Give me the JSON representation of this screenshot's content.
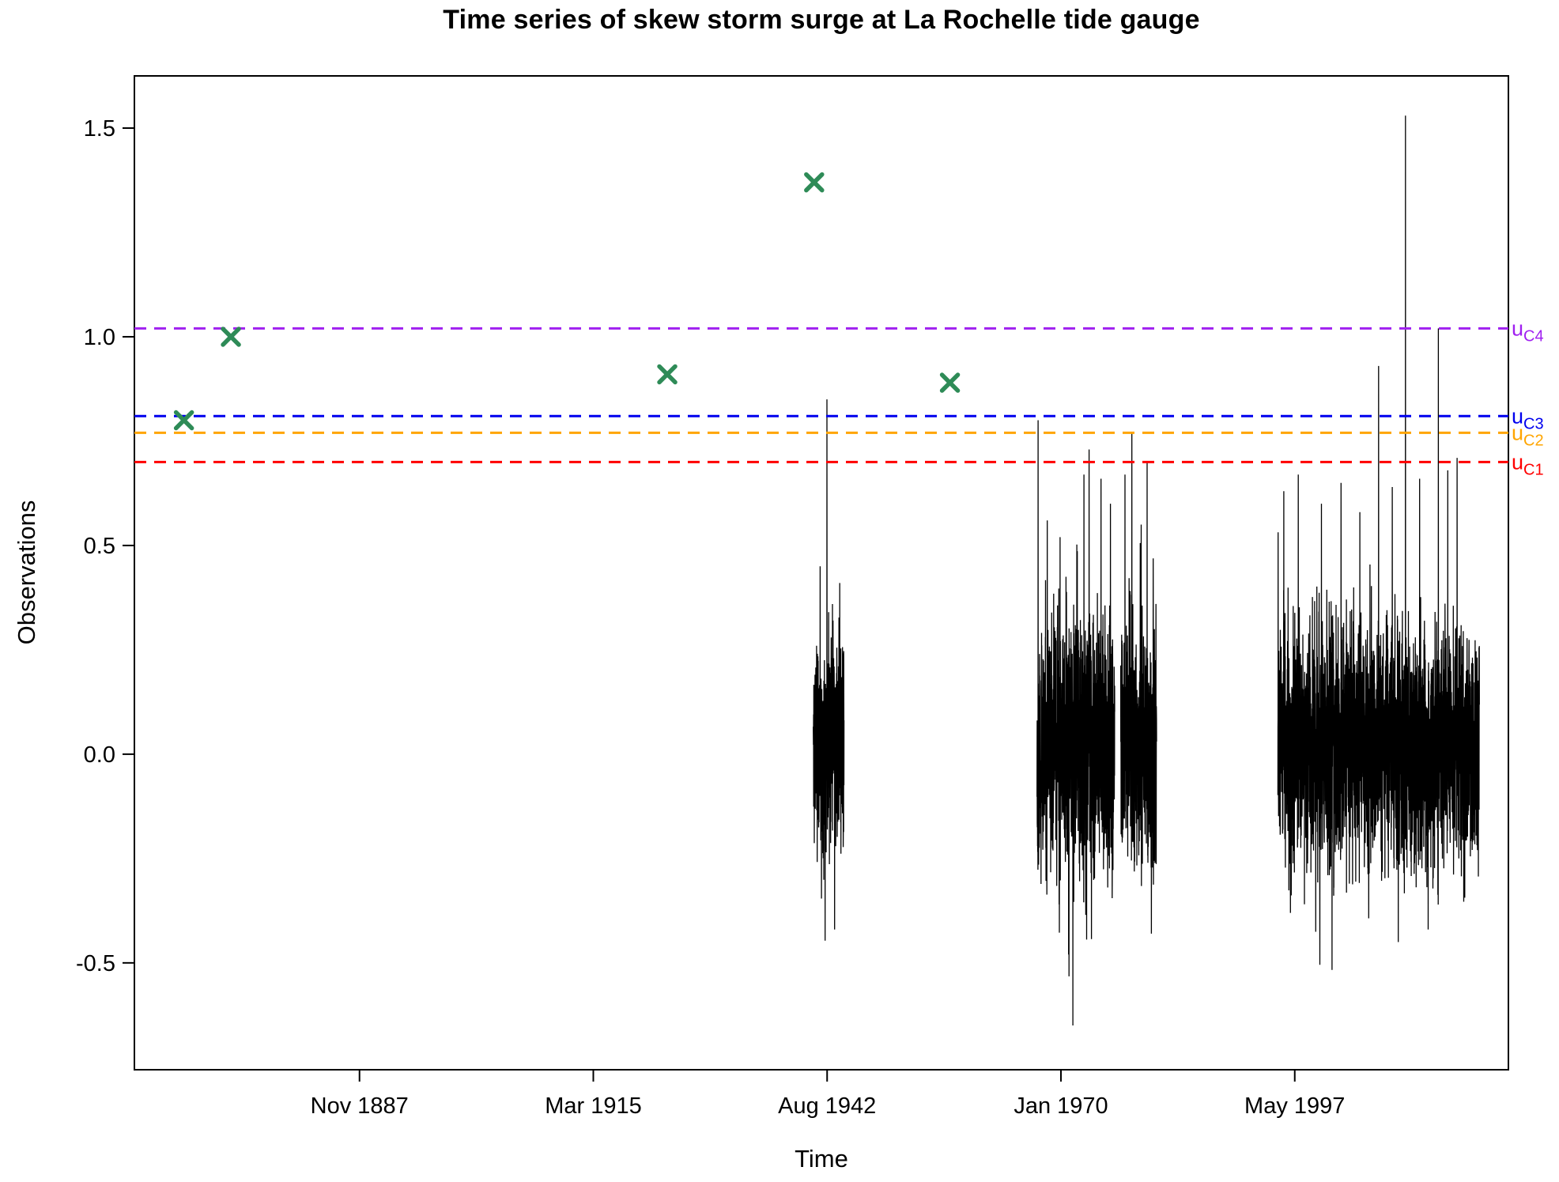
{
  "chart_data": {
    "type": "line",
    "title": "Time series of skew storm surge at La Rochelle tide gauge",
    "xlabel": "Time",
    "ylabel": "Observations",
    "x_range": [
      1861.5,
      2022.4
    ],
    "y_range": [
      -0.756,
      1.625
    ],
    "x_ticks": [
      {
        "label": "Nov 1887",
        "year": 1887.86
      },
      {
        "label": "Mar 1915",
        "year": 1915.24
      },
      {
        "label": "Aug 1942",
        "year": 1942.62
      },
      {
        "label": "Jan 1970",
        "year": 1970.0
      },
      {
        "label": "May 1997",
        "year": 1997.38
      }
    ],
    "y_ticks": [
      {
        "label": "-0.5",
        "value": -0.5
      },
      {
        "label": "0.0",
        "value": 0.0
      },
      {
        "label": "0.5",
        "value": 0.5
      },
      {
        "label": "1.0",
        "value": 1.0
      },
      {
        "label": "1.5",
        "value": 1.5
      }
    ],
    "line_color": "#000000",
    "thresholds": [
      {
        "id": "uC1",
        "symbol": "u",
        "subscript": "C1",
        "value": 0.7,
        "color": "#FF0000"
      },
      {
        "id": "uC2",
        "symbol": "u",
        "subscript": "C2",
        "value": 0.77,
        "color": "#FFA500"
      },
      {
        "id": "uC3",
        "symbol": "u",
        "subscript": "C3",
        "value": 0.81,
        "color": "#0000EE"
      },
      {
        "id": "uC4",
        "symbol": "u",
        "subscript": "C4",
        "value": 1.02,
        "color": "#A020F0"
      }
    ],
    "historical_extremes": {
      "marker": "x",
      "color": "#2E8B57",
      "points": [
        {
          "year": 1867.3,
          "value": 0.8
        },
        {
          "year": 1872.8,
          "value": 1.0
        },
        {
          "year": 1923.9,
          "value": 0.91
        },
        {
          "year": 1941.1,
          "value": 1.37
        },
        {
          "year": 1957.0,
          "value": 0.89
        }
      ]
    },
    "observation_clusters": [
      {
        "start": 1941.0,
        "end": 1944.6,
        "amplitude": 0.36,
        "mean": 0.03,
        "seed": 11,
        "density": 32,
        "spikes": [
          {
            "year": 1941.8,
            "value": 0.45
          },
          {
            "year": 1942.6,
            "value": 0.85
          },
          {
            "year": 1943.5,
            "value": -0.42
          },
          {
            "year": 1944.1,
            "value": 0.41
          }
        ]
      },
      {
        "start": 1967.2,
        "end": 1976.3,
        "amplitude": 0.44,
        "mean": 0.02,
        "seed": 22,
        "density": 32,
        "spikes": [
          {
            "year": 1967.33,
            "value": 0.8
          },
          {
            "year": 1968.4,
            "value": 0.56
          },
          {
            "year": 1969.9,
            "value": 0.52
          },
          {
            "year": 1970.9,
            "value": -0.48
          },
          {
            "year": 1971.4,
            "value": -0.65
          },
          {
            "year": 1972.7,
            "value": 0.67
          },
          {
            "year": 1973.3,
            "value": 0.73
          },
          {
            "year": 1974.7,
            "value": 0.66
          },
          {
            "year": 1975.8,
            "value": 0.6
          }
        ]
      },
      {
        "start": 1977.0,
        "end": 1981.2,
        "amplitude": 0.44,
        "mean": 0.02,
        "seed": 33,
        "density": 32,
        "spikes": [
          {
            "year": 1977.5,
            "value": 0.67
          },
          {
            "year": 1978.3,
            "value": 0.77
          },
          {
            "year": 1979.4,
            "value": 0.55
          },
          {
            "year": 1980.1,
            "value": 0.7
          },
          {
            "year": 1980.6,
            "value": -0.43
          }
        ]
      },
      {
        "start": 1995.4,
        "end": 2019.0,
        "amplitude": 0.42,
        "mean": 0.02,
        "seed": 44,
        "density": 32,
        "spikes": [
          {
            "year": 1996.1,
            "value": 0.63
          },
          {
            "year": 1997.8,
            "value": 0.67
          },
          {
            "year": 2000.5,
            "value": 0.6
          },
          {
            "year": 2002.8,
            "value": 0.65
          },
          {
            "year": 2005.0,
            "value": 0.58
          },
          {
            "year": 2007.2,
            "value": 0.93
          },
          {
            "year": 2008.8,
            "value": 0.64
          },
          {
            "year": 2009.5,
            "value": -0.45
          },
          {
            "year": 2010.35,
            "value": 1.53
          },
          {
            "year": 2012.0,
            "value": 0.66
          },
          {
            "year": 2013.0,
            "value": -0.42
          },
          {
            "year": 2014.2,
            "value": 1.02
          },
          {
            "year": 2015.3,
            "value": 0.68
          },
          {
            "year": 2016.4,
            "value": 0.71
          }
        ]
      }
    ]
  }
}
